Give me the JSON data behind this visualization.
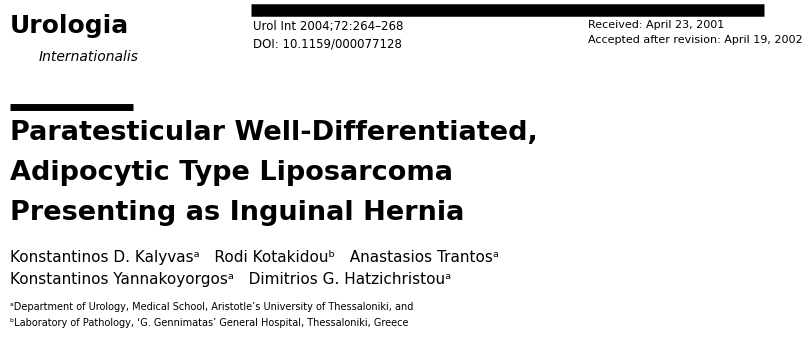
{
  "bg_color": "#ffffff",
  "logo_urologia": "Urologia",
  "logo_internationalis": "Internationalis",
  "journal_line1": "Urol Int 2004;72:264–268",
  "journal_line2": "DOI: 10.1159/000077128",
  "received_line1": "Received: April 23, 2001",
  "received_line2": "Accepted after revision: April 19, 2002",
  "title_line1": "Paratesticular Well-Differentiated,",
  "title_line2": "Adipocytic Type Liposarcoma",
  "title_line3": "Presenting as Inguinal Hernia",
  "authors_line1": "Konstantinos D. Kalyvasᵃ   Rodi Kotakidouᵇ   Anastasios Trantosᵃ",
  "authors_line2": "Konstantinos Yannakoyorgosᵃ   Dimitrios G. Hatzichristouᵃ",
  "affil_line1": "ᵃDepartment of Urology, Medical School, Aristotle’s University of Thessaloniki, and",
  "affil_line2": "ᵇLaboratory of Pathology, ‘G. Gennimatas’ General Hospital, Thessaloniki, Greece"
}
